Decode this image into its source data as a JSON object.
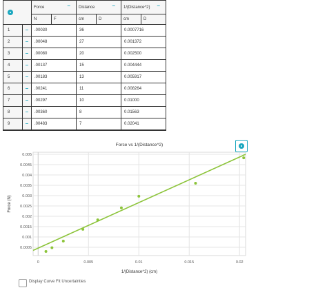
{
  "table": {
    "columns": [
      {
        "name": "Force",
        "units": [
          "N",
          "F"
        ]
      },
      {
        "name": "Distance",
        "units": [
          "cm",
          "D"
        ]
      },
      {
        "name": "1/(Distance^2)",
        "units": [
          "cm",
          "D"
        ]
      }
    ],
    "rows": [
      {
        "num": "1",
        "force": ".00030",
        "distance": "36",
        "inv": "0.0007716"
      },
      {
        "num": "2",
        "force": ".00048",
        "distance": "27",
        "inv": "0.001372"
      },
      {
        "num": "3",
        "force": ".00080",
        "distance": "20",
        "inv": "0.002500"
      },
      {
        "num": "4",
        "force": ".00137",
        "distance": "15",
        "inv": "0.004444"
      },
      {
        "num": "5",
        "force": ".00183",
        "distance": "13",
        "inv": "0.005917"
      },
      {
        "num": "6",
        "force": ".00241",
        "distance": "11",
        "inv": "0.008264"
      },
      {
        "num": "7",
        "force": ".00297",
        "distance": "10",
        "inv": "0.01000"
      },
      {
        "num": "8",
        "force": ".00360",
        "distance": "8",
        "inv": "0.01563"
      },
      {
        "num": "9",
        "force": ".00483",
        "distance": "7",
        "inv": "0.02041"
      }
    ]
  },
  "chart_data": {
    "type": "scatter",
    "title": "Force vs 1/(Distance^2)",
    "xlabel": "1/(Distance^2) (cm)",
    "ylabel": "Force (N)",
    "xlim": [
      -0.0005,
      0.0206
    ],
    "ylim": [
      0.0001,
      0.0051
    ],
    "xticks": [
      "0",
      "0.005",
      "0.01",
      "0.015",
      "0.02"
    ],
    "yticks": [
      "0.005",
      "0.0045",
      "0.004",
      "0.0035",
      "0.003",
      "0.0025",
      "0.002",
      "0.0015",
      "0.001",
      "0.0005"
    ],
    "grid": true,
    "series": [
      {
        "x": [
          0.0007716,
          0.001372,
          0.0025,
          0.004444,
          0.005917,
          0.008264,
          0.01,
          0.01563,
          0.02041
        ],
        "y": [
          0.0003,
          0.00048,
          0.0008,
          0.00137,
          0.00183,
          0.00241,
          0.00297,
          0.0036,
          0.00483
        ]
      }
    ],
    "fit_line": {
      "x": [
        -0.0005,
        0.0206
      ],
      "y": [
        0.00035,
        0.005
      ]
    },
    "colors": {
      "points": "#8cc43a",
      "line": "#8cc43a",
      "grid": "#e4e4e4",
      "accent": "#1aa7bf"
    }
  },
  "controls": {
    "curve_fit_label": "Display Curve Fit Uncertainties"
  }
}
